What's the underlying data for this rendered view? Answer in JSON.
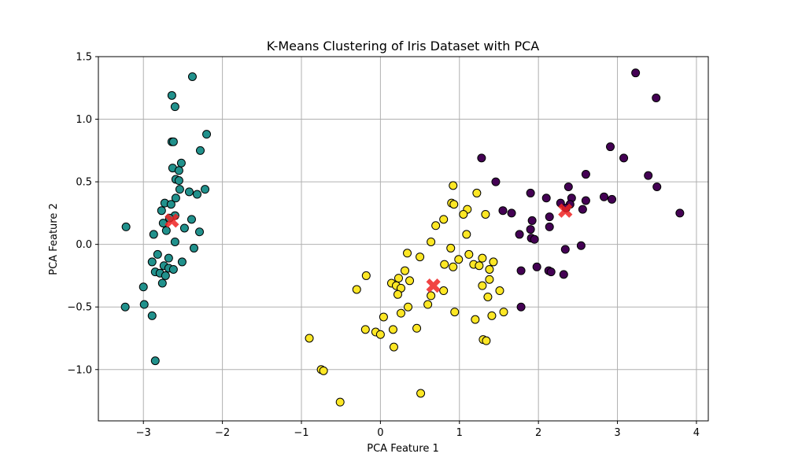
{
  "chart_data": {
    "type": "scatter",
    "title": "K-Means Clustering of Iris Dataset with PCA",
    "xlabel": "PCA Feature 1",
    "ylabel": "PCA Feature 2",
    "xlim": [
      -3.57,
      4.15
    ],
    "ylim": [
      -1.41,
      1.5
    ],
    "xticks": [
      -3,
      -2,
      -1,
      0,
      1,
      2,
      3,
      4
    ],
    "xtick_labels": [
      "−3",
      "−2",
      "−1",
      "0",
      "1",
      "2",
      "3",
      "4"
    ],
    "yticks": [
      -1.0,
      -0.5,
      0.0,
      0.5,
      1.0,
      1.5
    ],
    "ytick_labels": [
      "−1.0",
      "−0.5",
      "0.0",
      "0.5",
      "1.0",
      "1.5"
    ],
    "grid": true,
    "colors": {
      "cluster_0": "#440154",
      "cluster_1": "#21918c",
      "cluster_2": "#fde725",
      "centroid": "#ee2222",
      "point_edge": "#000000",
      "grid": "#b0b0b0"
    },
    "clusters": [
      {
        "color": "#21918c",
        "points": [
          [
            -2.38,
            1.34
          ],
          [
            -2.64,
            1.19
          ],
          [
            -2.6,
            1.1
          ],
          [
            -2.2,
            0.88
          ],
          [
            -2.64,
            0.82
          ],
          [
            -2.62,
            0.82
          ],
          [
            -2.28,
            0.75
          ],
          [
            -2.52,
            0.65
          ],
          [
            -2.63,
            0.61
          ],
          [
            -2.55,
            0.59
          ],
          [
            -2.59,
            0.52
          ],
          [
            -2.55,
            0.51
          ],
          [
            -2.22,
            0.44
          ],
          [
            -2.54,
            0.44
          ],
          [
            -2.42,
            0.42
          ],
          [
            -2.32,
            0.4
          ],
          [
            -2.59,
            0.37
          ],
          [
            -2.73,
            0.33
          ],
          [
            -2.65,
            0.32
          ],
          [
            -2.77,
            0.27
          ],
          [
            -2.6,
            0.23
          ],
          [
            -2.67,
            0.21
          ],
          [
            -2.39,
            0.2
          ],
          [
            -2.75,
            0.17
          ],
          [
            -3.22,
            0.14
          ],
          [
            -2.48,
            0.13
          ],
          [
            -2.71,
            0.11
          ],
          [
            -2.29,
            0.1
          ],
          [
            -2.87,
            0.08
          ],
          [
            -2.6,
            0.02
          ],
          [
            -2.36,
            -0.03
          ],
          [
            -2.82,
            -0.08
          ],
          [
            -2.68,
            -0.11
          ],
          [
            -2.89,
            -0.14
          ],
          [
            -2.51,
            -0.14
          ],
          [
            -2.74,
            -0.17
          ],
          [
            -2.68,
            -0.19
          ],
          [
            -2.62,
            -0.2
          ],
          [
            -2.85,
            -0.22
          ],
          [
            -2.79,
            -0.23
          ],
          [
            -2.72,
            -0.25
          ],
          [
            -2.76,
            -0.31
          ],
          [
            -3.0,
            -0.34
          ],
          [
            -2.99,
            -0.48
          ],
          [
            -3.23,
            -0.5
          ],
          [
            -2.89,
            -0.57
          ],
          [
            -2.85,
            -0.93
          ]
        ]
      },
      {
        "color": "#fde725",
        "points": [
          [
            0.92,
            0.47
          ],
          [
            1.22,
            0.41
          ],
          [
            0.9,
            0.33
          ],
          [
            0.93,
            0.32
          ],
          [
            1.1,
            0.28
          ],
          [
            1.05,
            0.24
          ],
          [
            1.33,
            0.24
          ],
          [
            0.8,
            0.2
          ],
          [
            0.7,
            0.15
          ],
          [
            1.09,
            0.08
          ],
          [
            0.64,
            0.02
          ],
          [
            0.89,
            -0.03
          ],
          [
            0.34,
            -0.07
          ],
          [
            1.12,
            -0.08
          ],
          [
            0.5,
            -0.1
          ],
          [
            1.29,
            -0.11
          ],
          [
            0.99,
            -0.12
          ],
          [
            1.43,
            -0.14
          ],
          [
            1.18,
            -0.16
          ],
          [
            0.81,
            -0.16
          ],
          [
            1.25,
            -0.17
          ],
          [
            0.92,
            -0.18
          ],
          [
            1.38,
            -0.2
          ],
          [
            0.31,
            -0.21
          ],
          [
            -0.18,
            -0.25
          ],
          [
            0.23,
            -0.27
          ],
          [
            1.38,
            -0.28
          ],
          [
            0.37,
            -0.29
          ],
          [
            0.14,
            -0.31
          ],
          [
            0.2,
            -0.33
          ],
          [
            1.29,
            -0.33
          ],
          [
            0.26,
            -0.35
          ],
          [
            -0.3,
            -0.36
          ],
          [
            0.8,
            -0.37
          ],
          [
            1.51,
            -0.37
          ],
          [
            0.22,
            -0.4
          ],
          [
            0.64,
            -0.41
          ],
          [
            1.36,
            -0.42
          ],
          [
            0.6,
            -0.48
          ],
          [
            0.35,
            -0.5
          ],
          [
            0.94,
            -0.54
          ],
          [
            1.56,
            -0.54
          ],
          [
            0.26,
            -0.55
          ],
          [
            1.41,
            -0.57
          ],
          [
            0.04,
            -0.58
          ],
          [
            1.2,
            -0.6
          ],
          [
            -0.19,
            -0.68
          ],
          [
            0.16,
            -0.68
          ],
          [
            0.46,
            -0.67
          ],
          [
            -0.06,
            -0.7
          ],
          [
            0.0,
            -0.72
          ],
          [
            -0.9,
            -0.75
          ],
          [
            1.3,
            -0.76
          ],
          [
            1.34,
            -0.77
          ],
          [
            0.17,
            -0.82
          ],
          [
            -0.75,
            -1.0
          ],
          [
            -0.72,
            -1.01
          ],
          [
            0.51,
            -1.19
          ],
          [
            -0.51,
            -1.26
          ]
        ]
      },
      {
        "color": "#440154",
        "points": [
          [
            3.23,
            1.37
          ],
          [
            3.49,
            1.17
          ],
          [
            2.91,
            0.78
          ],
          [
            3.08,
            0.69
          ],
          [
            1.28,
            0.69
          ],
          [
            2.6,
            0.56
          ],
          [
            3.39,
            0.55
          ],
          [
            1.46,
            0.5
          ],
          [
            2.38,
            0.46
          ],
          [
            3.5,
            0.46
          ],
          [
            1.9,
            0.41
          ],
          [
            2.83,
            0.38
          ],
          [
            2.42,
            0.37
          ],
          [
            2.1,
            0.37
          ],
          [
            2.93,
            0.36
          ],
          [
            2.6,
            0.35
          ],
          [
            2.28,
            0.33
          ],
          [
            2.4,
            0.32
          ],
          [
            2.35,
            0.29
          ],
          [
            2.56,
            0.28
          ],
          [
            1.55,
            0.27
          ],
          [
            1.66,
            0.25
          ],
          [
            3.79,
            0.25
          ],
          [
            2.14,
            0.22
          ],
          [
            1.92,
            0.19
          ],
          [
            2.14,
            0.14
          ],
          [
            1.9,
            0.12
          ],
          [
            1.76,
            0.08
          ],
          [
            1.91,
            0.05
          ],
          [
            1.95,
            0.04
          ],
          [
            2.54,
            -0.01
          ],
          [
            2.34,
            -0.04
          ],
          [
            1.98,
            -0.18
          ],
          [
            1.78,
            -0.21
          ],
          [
            2.13,
            -0.21
          ],
          [
            2.16,
            -0.22
          ],
          [
            2.32,
            -0.24
          ],
          [
            1.78,
            -0.5
          ]
        ]
      }
    ],
    "centroids": [
      [
        -2.64,
        0.19
      ],
      [
        0.67,
        -0.33
      ],
      [
        2.34,
        0.27
      ]
    ]
  }
}
